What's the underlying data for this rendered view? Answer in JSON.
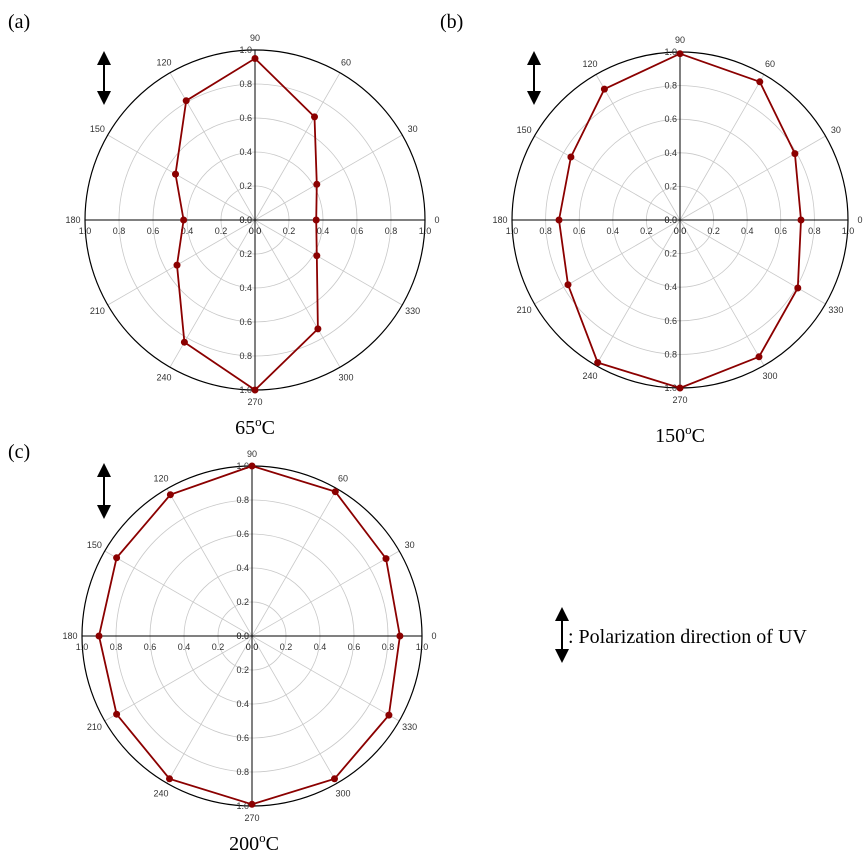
{
  "legend": {
    "text": ": Polarization direction of UV",
    "icon": "double-arrow-vertical-icon"
  },
  "colors": {
    "series": "#8b0000",
    "grid": "#c8c8c8",
    "axis": "#000000"
  },
  "chart_data": [
    {
      "type": "polar-line",
      "panel": "(a)",
      "caption": {
        "base": "65",
        "sup": "o",
        "unit": "C"
      },
      "angle_labels": [
        "0",
        "30",
        "60",
        "90",
        "120",
        "150",
        "180",
        "210",
        "240",
        "270",
        "300",
        "330"
      ],
      "r_range": [
        0,
        1.0
      ],
      "r_ticks": [
        "0.0",
        "0.2",
        "0.4",
        "0.6",
        "0.8",
        "1.0"
      ],
      "angles_deg": [
        0,
        30,
        60,
        90,
        120,
        150,
        180,
        210,
        240,
        270,
        300,
        330
      ],
      "values": [
        0.36,
        0.42,
        0.7,
        0.95,
        0.81,
        0.54,
        0.42,
        0.53,
        0.83,
        1.0,
        0.74,
        0.42
      ]
    },
    {
      "type": "polar-line",
      "panel": "(b)",
      "caption": {
        "base": "150",
        "sup": "o",
        "unit": "C"
      },
      "angle_labels": [
        "0",
        "30",
        "60",
        "90",
        "120",
        "150",
        "180",
        "210",
        "240",
        "270",
        "300",
        "330"
      ],
      "r_range": [
        0,
        1.0
      ],
      "r_ticks": [
        "0.0",
        "0.2",
        "0.4",
        "0.6",
        "0.8",
        "1.0"
      ],
      "angles_deg": [
        0,
        30,
        60,
        90,
        120,
        150,
        180,
        210,
        240,
        270,
        300,
        330
      ],
      "values": [
        0.72,
        0.79,
        0.95,
        0.99,
        0.9,
        0.75,
        0.72,
        0.77,
        0.98,
        1.0,
        0.94,
        0.81
      ]
    },
    {
      "type": "polar-line",
      "panel": "(c)",
      "caption": {
        "base": "200",
        "sup": "o",
        "unit": "C"
      },
      "angle_labels": [
        "0",
        "30",
        "60",
        "90",
        "120",
        "150",
        "180",
        "210",
        "240",
        "270",
        "300",
        "330"
      ],
      "r_range": [
        0,
        1.0
      ],
      "r_ticks": [
        "0.0",
        "0.2",
        "0.4",
        "0.6",
        "0.8",
        "1.0"
      ],
      "angles_deg": [
        0,
        30,
        60,
        90,
        120,
        150,
        180,
        210,
        240,
        270,
        300,
        330
      ],
      "values": [
        0.87,
        0.91,
        0.98,
        1.0,
        0.96,
        0.92,
        0.9,
        0.92,
        0.97,
        0.99,
        0.97,
        0.93
      ]
    }
  ]
}
